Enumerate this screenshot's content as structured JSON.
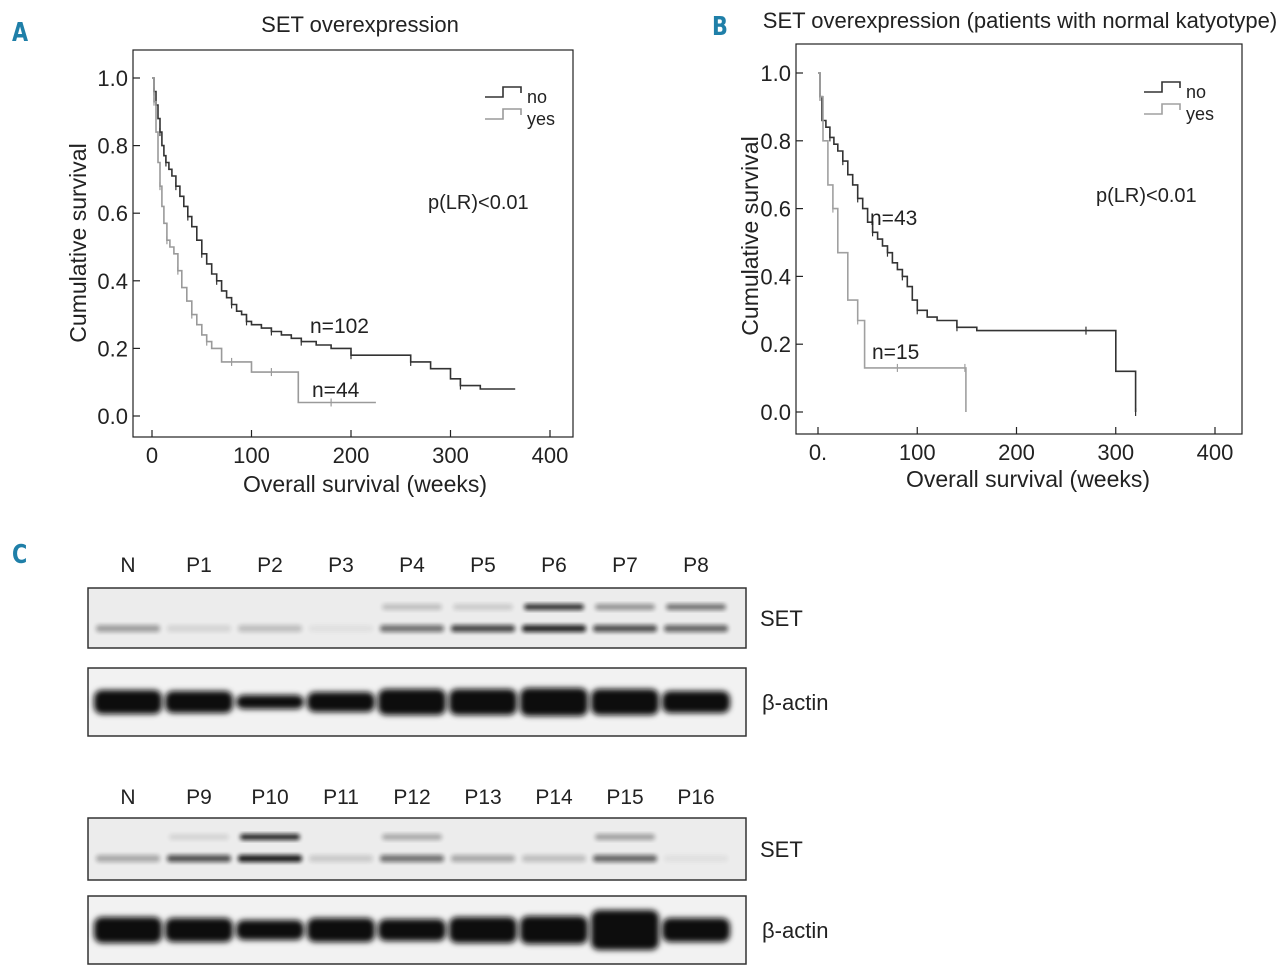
{
  "panels": {
    "a": "A",
    "b": "B",
    "c": "C"
  },
  "chart_data": [
    {
      "type": "line",
      "title": "SET overexpression",
      "xlabel": "Overall survival (weeks)",
      "ylabel": "Cumulative survival",
      "xlim": [
        0,
        400
      ],
      "ylim": [
        0,
        1.0
      ],
      "x_ticks": [
        "0",
        "100",
        "200",
        "300",
        "400"
      ],
      "y_ticks": [
        "0.0",
        "0.2",
        "0.4",
        "0.6",
        "0.8",
        "1.0"
      ],
      "legend": [
        "no",
        "yes"
      ],
      "legend_position": "top-right",
      "annotation": "p(LR)<0.01",
      "series": [
        {
          "name": "no",
          "label": "n=102",
          "color": "#333333",
          "x": [
            0,
            2,
            4,
            6,
            8,
            10,
            12,
            14,
            17,
            20,
            24,
            28,
            32,
            36,
            40,
            45,
            50,
            55,
            60,
            65,
            70,
            75,
            80,
            85,
            90,
            95,
            100,
            110,
            120,
            130,
            140,
            150,
            165,
            180,
            200,
            220,
            240,
            260,
            280,
            300,
            310,
            330,
            365
          ],
          "y": [
            1.0,
            0.96,
            0.92,
            0.88,
            0.84,
            0.8,
            0.77,
            0.75,
            0.73,
            0.71,
            0.68,
            0.65,
            0.62,
            0.59,
            0.56,
            0.52,
            0.48,
            0.45,
            0.42,
            0.4,
            0.37,
            0.35,
            0.33,
            0.31,
            0.3,
            0.28,
            0.27,
            0.26,
            0.25,
            0.24,
            0.23,
            0.22,
            0.21,
            0.2,
            0.18,
            0.18,
            0.18,
            0.16,
            0.14,
            0.11,
            0.09,
            0.08,
            0.08
          ]
        },
        {
          "name": "yes",
          "label": "n=44",
          "color": "#9a9a9a",
          "x": [
            0,
            2,
            4,
            6,
            8,
            10,
            12,
            15,
            18,
            22,
            26,
            30,
            35,
            40,
            45,
            50,
            55,
            60,
            70,
            80,
            90,
            100,
            120,
            147,
            160,
            180,
            200,
            225
          ],
          "y": [
            1.0,
            0.93,
            0.84,
            0.75,
            0.68,
            0.62,
            0.57,
            0.52,
            0.5,
            0.48,
            0.43,
            0.38,
            0.34,
            0.3,
            0.27,
            0.24,
            0.22,
            0.2,
            0.16,
            0.16,
            0.16,
            0.13,
            0.13,
            0.04,
            0.04,
            0.04,
            0.04,
            0.04
          ]
        }
      ]
    },
    {
      "type": "line",
      "title": "SET overexpression (patients with normal katyotype)",
      "xlabel": "Overall survival (weeks)",
      "ylabel": "Cumulative survival",
      "xlim": [
        0,
        400
      ],
      "ylim": [
        0,
        1.0
      ],
      "x_ticks": [
        "0.",
        "100",
        "200",
        "300",
        "400"
      ],
      "y_ticks": [
        "0.0",
        "0.2",
        "0.4",
        "0.6",
        "0.8",
        "1.0"
      ],
      "legend": [
        "no",
        "yes"
      ],
      "legend_position": "top-right",
      "annotation": "p(LR)<0.01",
      "series": [
        {
          "name": "no",
          "label": "n=43",
          "color": "#333333",
          "x": [
            0,
            2,
            4,
            8,
            12,
            16,
            20,
            25,
            30,
            35,
            40,
            45,
            50,
            55,
            60,
            65,
            70,
            75,
            80,
            85,
            90,
            95,
            100,
            110,
            120,
            140,
            160,
            200,
            270,
            300,
            310,
            320
          ],
          "y": [
            1.0,
            0.93,
            0.86,
            0.84,
            0.81,
            0.79,
            0.77,
            0.74,
            0.7,
            0.67,
            0.63,
            0.6,
            0.56,
            0.53,
            0.51,
            0.49,
            0.47,
            0.44,
            0.42,
            0.4,
            0.37,
            0.33,
            0.3,
            0.28,
            0.27,
            0.25,
            0.24,
            0.24,
            0.24,
            0.12,
            0.12,
            0.0
          ]
        },
        {
          "name": "yes",
          "label": "n=15",
          "color": "#a0a0a0",
          "x": [
            0,
            2,
            5,
            10,
            15,
            20,
            30,
            40,
            47,
            60,
            80,
            100,
            120,
            148,
            149
          ],
          "y": [
            1.0,
            0.93,
            0.8,
            0.67,
            0.6,
            0.47,
            0.33,
            0.27,
            0.13,
            0.13,
            0.13,
            0.13,
            0.13,
            0.13,
            0.0
          ]
        }
      ]
    }
  ],
  "western_blot": {
    "top": {
      "lanes": [
        "N",
        "P1",
        "P2",
        "P3",
        "P4",
        "P5",
        "P6",
        "P7",
        "P8"
      ],
      "set_label": "SET",
      "actin_label": "β-actin"
    },
    "bottom": {
      "lanes": [
        "N",
        "P9",
        "P10",
        "P11",
        "P12",
        "P13",
        "P14",
        "P15",
        "P16"
      ],
      "set_label": "SET",
      "actin_label": "β-actin"
    }
  }
}
